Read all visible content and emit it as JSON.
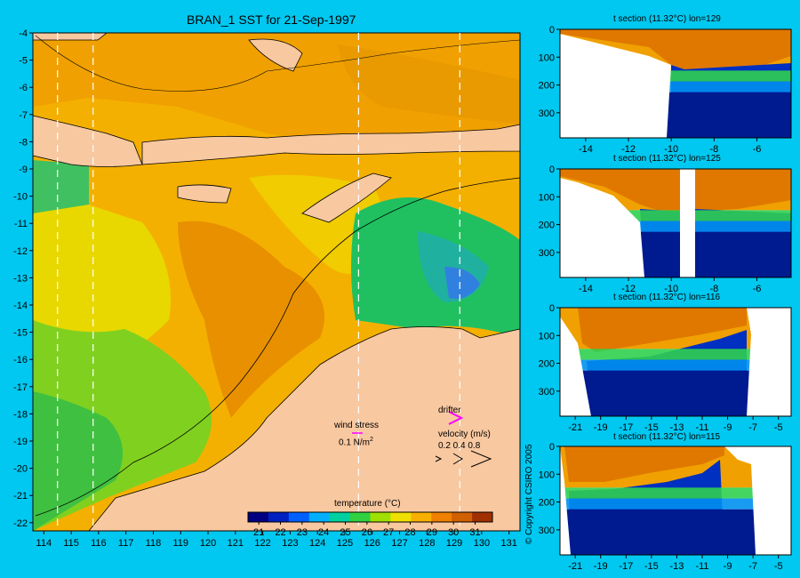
{
  "chart_data": [
    {
      "type": "heatmap",
      "title": "BRAN_1 SST for 21-Sep-1997",
      "x_ticks": [
        "114",
        "115",
        "116",
        "117",
        "118",
        "119",
        "120",
        "121",
        "122",
        "123",
        "124",
        "125",
        "126",
        "127",
        "128",
        "129",
        "130",
        "131"
      ],
      "y_ticks": [
        "-4",
        "-5",
        "-6",
        "-7",
        "-8",
        "-9",
        "-10",
        "-11",
        "-12",
        "-13",
        "-14",
        "-15",
        "-16",
        "-17",
        "-18",
        "-19",
        "-20",
        "-21",
        "-22"
      ],
      "xlim": [
        113.6,
        131.4
      ],
      "ylim": [
        -22.3,
        -4
      ],
      "section_lines_lon": [
        114.5,
        115.8,
        125.5,
        129.2
      ],
      "colorbar": {
        "label": "temperature (°C)",
        "ticks": [
          "21",
          "22",
          "23",
          "24",
          "25",
          "26",
          "27",
          "28",
          "29",
          "30",
          "31"
        ],
        "range": [
          20.5,
          31.8
        ],
        "colors": [
          "#000080",
          "#0020c0",
          "#0060ff",
          "#00b0ff",
          "#00d0a0",
          "#30d040",
          "#a0e000",
          "#f0e000",
          "#f8b000",
          "#f08000",
          "#d06000",
          "#a03000"
        ]
      },
      "legend": {
        "wind_label": "wind stress",
        "wind_scale": "0.1 N/m",
        "wind_scale_sup": "2",
        "drifter_label": "drifter",
        "velocity_label": "velocity (m/s)",
        "velocity_values": "0.2 0.4 0.8"
      }
    },
    {
      "type": "heatmap",
      "title": "t section (11.32°C) lon=129",
      "x_ticks": [
        "-14",
        "-12",
        "-10",
        "-8",
        "-6"
      ],
      "y_ticks": [
        "0",
        "100",
        "200",
        "300"
      ],
      "xlim": [
        -15.2,
        -4.4
      ],
      "ylim": [
        390,
        0
      ]
    },
    {
      "type": "heatmap",
      "title": "t section (11.32°C) lon=125",
      "x_ticks": [
        "-14",
        "-12",
        "-10",
        "-8",
        "-6"
      ],
      "y_ticks": [
        "0",
        "100",
        "200",
        "300"
      ],
      "xlim": [
        -15.2,
        -4.4
      ],
      "ylim": [
        390,
        0
      ]
    },
    {
      "type": "heatmap",
      "title": "t section (11.32°C) lon=116",
      "x_ticks": [
        "-21",
        "-19",
        "-17",
        "-15",
        "-13",
        "-11",
        "-9",
        "-7",
        "-5"
      ],
      "y_ticks": [
        "0",
        "100",
        "200",
        "300"
      ],
      "xlim": [
        -22.2,
        -4
      ],
      "ylim": [
        390,
        0
      ]
    },
    {
      "type": "heatmap",
      "title": "t section (11.32°C) lon=115",
      "x_ticks": [
        "-21",
        "-19",
        "-17",
        "-15",
        "-13",
        "-11",
        "-9",
        "-7",
        "-5"
      ],
      "y_ticks": [
        "0",
        "100",
        "200",
        "300"
      ],
      "xlim": [
        -22.2,
        -4
      ],
      "ylim": [
        390,
        0
      ]
    }
  ],
  "copyright": "© Copyright CSIRO 2005"
}
